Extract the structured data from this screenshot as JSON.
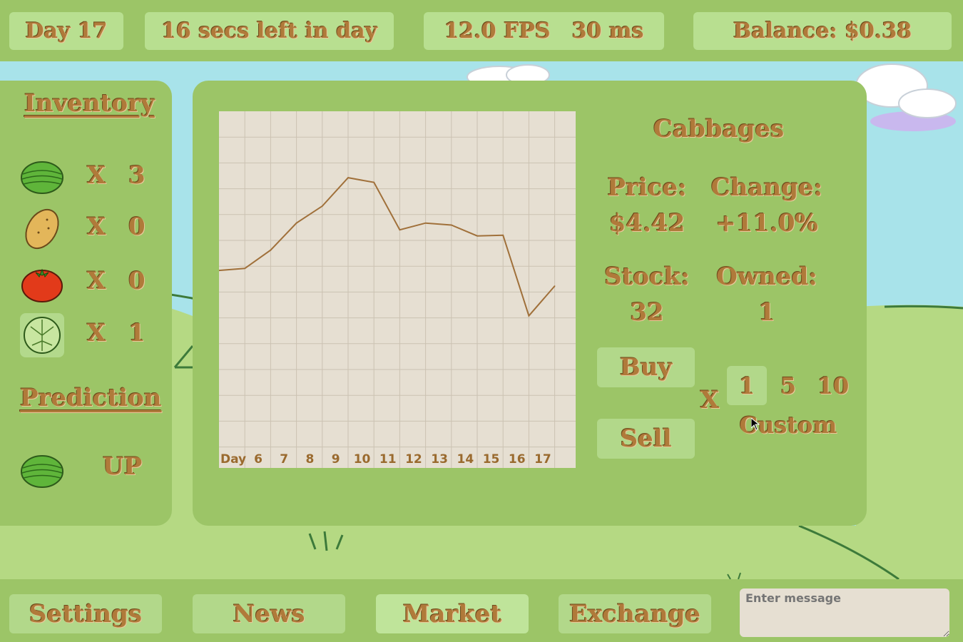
{
  "status": {
    "day": "Day 17",
    "time_left": "16 secs left in day",
    "fps": "12.0 FPS",
    "ms": "30 ms",
    "balance": "Balance: $0.38"
  },
  "inventory": {
    "heading": "Inventory",
    "items": [
      {
        "icon": "watermelon-icon",
        "x": "X",
        "count": "3"
      },
      {
        "icon": "potato-icon",
        "x": "X",
        "count": "0"
      },
      {
        "icon": "tomato-icon",
        "x": "X",
        "count": "0"
      },
      {
        "icon": "cabbage-icon",
        "x": "X",
        "count": "1"
      }
    ],
    "prediction_heading": "Prediction",
    "prediction_icon": "watermelon-icon",
    "prediction_value": "UP"
  },
  "market": {
    "title": "Cabbages",
    "price_label": "Price:",
    "price_value": "$4.42",
    "change_label": "Change:",
    "change_value": "+11.0%",
    "stock_label": "Stock:",
    "stock_value": "32",
    "owned_label": "Owned:",
    "owned_value": "1",
    "buy_label": "Buy",
    "sell_label": "Sell",
    "times_label": "X",
    "quantities": [
      "1",
      "5",
      "10"
    ],
    "custom_label": "Custom"
  },
  "chart_data": {
    "type": "line",
    "xlabel": "Day",
    "x": [
      "5",
      "6",
      "7",
      "8",
      "9",
      "10",
      "11",
      "12",
      "13",
      "14",
      "15",
      "16",
      "17",
      "18"
    ],
    "tick_labels": [
      "6",
      "7",
      "8",
      "9",
      "10",
      "11",
      "12",
      "13",
      "14",
      "15",
      "16",
      "17"
    ],
    "series": [
      {
        "values": [
          4.65,
          4.68,
          4.95,
          5.35,
          5.6,
          6.02,
          5.95,
          5.25,
          5.35,
          5.32,
          5.16,
          5.17,
          3.98,
          4.42
        ]
      }
    ],
    "ylim": [
      2.05,
      7.0
    ],
    "grid": true,
    "line_color": "#a0703a"
  },
  "nav": {
    "settings": "Settings",
    "news": "News",
    "market": "Market",
    "exchange": "Exchange",
    "chat_placeholder": "Enter message"
  },
  "colors": {
    "panel": "#9cc567",
    "button": "#b2d88a",
    "text": "#9a6a2e",
    "chart_bg": "#e6dfd2"
  }
}
